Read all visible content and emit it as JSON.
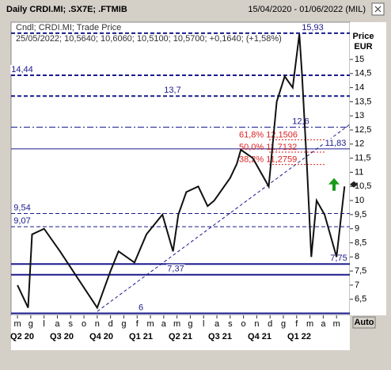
{
  "chart_data": {
    "type": "line",
    "title": "Daily CRDI.MI; .SX7E; .FTMIB",
    "date_range": "15/04/2020 - 01/06/2022 (MIL)",
    "legend_lines": [
      "Cndl; CRDI.MI; Trade Price",
      "25/05/2022; 10,5640; 10,6060; 10,5100; 10,5700; +0,1640; (+1,58%)"
    ],
    "y_label": "Price",
    "y_unit": "EUR",
    "button": "Auto",
    "categories": [
      "m",
      "g",
      "l",
      "a",
      "s",
      "o",
      "n",
      "d",
      "g",
      "f",
      "m",
      "a",
      "m",
      "g",
      "l",
      "a",
      "s",
      "o",
      "n",
      "d",
      "g",
      "f",
      "m",
      "a",
      "m"
    ],
    "quarters": [
      "Q2 20",
      "Q3 20",
      "Q4 20",
      "Q1 21",
      "Q2 21",
      "Q3 21",
      "Q4 21",
      "Q1 22"
    ],
    "x": [
      0,
      0.8,
      1.1,
      2.0,
      3.2,
      4.6,
      6.0,
      7.0,
      7.6,
      8.8,
      9.7,
      10.9,
      11.7,
      12.1,
      12.7,
      13.6,
      14.3,
      14.8,
      16.0,
      16.5,
      16.8,
      17.7,
      18.9,
      19.5,
      20.1,
      20.7,
      21.2,
      21.4,
      21.8,
      22.1,
      22.5,
      23.1,
      24.0,
      24.6
    ],
    "values": [
      7.0,
      6.2,
      8.8,
      9.0,
      8.2,
      7.2,
      6.2,
      7.5,
      8.2,
      7.8,
      8.8,
      9.5,
      8.2,
      9.5,
      10.3,
      10.5,
      9.8,
      10.0,
      10.8,
      11.3,
      11.8,
      11.5,
      10.5,
      13.5,
      14.4,
      14.0,
      15.9,
      14.5,
      11.0,
      8.0,
      10.0,
      9.5,
      8.0,
      10.5
    ],
    "color": "#111111",
    "xlim": [
      -0.48,
      25
    ],
    "ylim": [
      5.93,
      16.32
    ],
    "yticks": [
      {
        "value": 6.5,
        "label": "6,5"
      },
      7,
      {
        "value": 7.5,
        "label": "7,5"
      },
      8,
      {
        "value": 8.5,
        "label": "8,5"
      },
      9,
      {
        "value": 9.5,
        "label": "9,5"
      },
      10,
      {
        "value": 10.5,
        "label": "10,5"
      },
      11,
      {
        "value": 11.5,
        "label": "11,5"
      },
      12,
      {
        "value": 12.5,
        "label": "12,5"
      },
      13,
      {
        "value": 13.5,
        "label": "13,5"
      },
      14,
      {
        "value": 14.5,
        "label": "14,5"
      },
      15
    ],
    "levels": [
      {
        "value": 15.93,
        "label": "15,93",
        "style": "dashed"
      },
      {
        "value": 14.44,
        "label": "14,44",
        "style": "dashed"
      },
      {
        "value": 13.7,
        "label": "13,7",
        "style": "dashed"
      },
      {
        "value": 12.6,
        "label": "12,6",
        "style": "dashdot"
      },
      {
        "value": 11.83,
        "label": "11,83",
        "style": "solid"
      },
      {
        "value": 9.54,
        "label": "9,54",
        "style": "dashed"
      },
      {
        "value": 9.07,
        "label": "9,07",
        "style": "dashed"
      },
      {
        "value": 7.75,
        "label": "7,75",
        "style": "solid"
      },
      {
        "value": 7.37,
        "label": "7,37",
        "style": "solid"
      },
      {
        "value": 6,
        "label": "6",
        "style": "solid"
      }
    ],
    "fib_levels": [
      {
        "value": 12.1506,
        "label": "61,8% 12,1506"
      },
      {
        "value": 11.7132,
        "label": "50,0% 11,7132"
      },
      {
        "value": 11.2759,
        "label": "38,2% 11,2759"
      }
    ],
    "last_price": {
      "value": 10.57
    }
  }
}
